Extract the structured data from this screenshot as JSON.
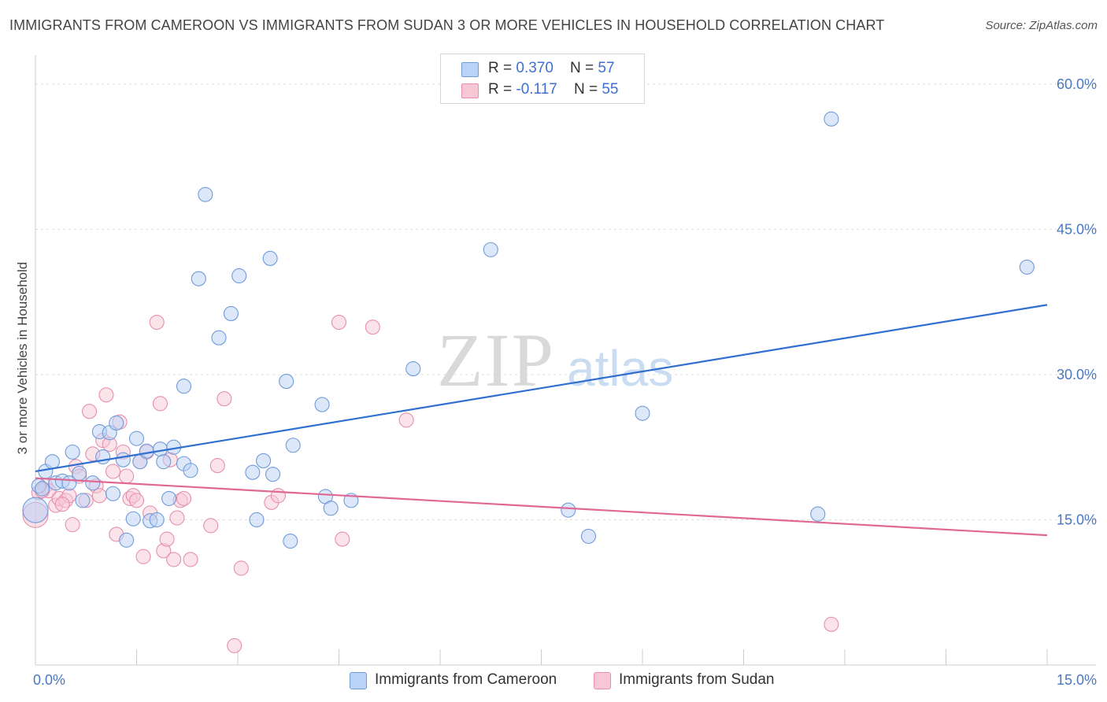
{
  "title": "IMMIGRANTS FROM CAMEROON VS IMMIGRANTS FROM SUDAN 3 OR MORE VEHICLES IN HOUSEHOLD CORRELATION CHART",
  "source": "Source: ZipAtlas.com",
  "legend": {
    "rows": [
      {
        "r_label": "R = ",
        "r_value": "0.370",
        "n_label": "N = ",
        "n_value": "57"
      },
      {
        "r_label": "R = ",
        "r_value": "-0.117",
        "n_label": "N = ",
        "n_value": "55"
      }
    ]
  },
  "colors": {
    "cameroon_fill": "#b9d2f5",
    "cameroon_stroke": "#6f9bd9",
    "cameroon_line": "#2f6fd0",
    "sudan_fill": "#f8c7d6",
    "sudan_stroke": "#e68fae",
    "sudan_line": "#e06994",
    "tick_label": "#4a78c0"
  },
  "chart_data": {
    "type": "scatter",
    "title": "IMMIGRANTS FROM CAMEROON VS IMMIGRANTS FROM SUDAN 3 OR MORE VEHICLES IN HOUSEHOLD CORRELATION CHART",
    "xlabel": "",
    "ylabel": "3 or more Vehicles in Household",
    "xlim": [
      0,
      15
    ],
    "ylim": [
      0,
      63
    ],
    "x_tick_labels": [
      "0.0%",
      "15.0%"
    ],
    "y_ticks": [
      15,
      30,
      45,
      60
    ],
    "y_tick_labels": [
      "15.0%",
      "30.0%",
      "45.0%",
      "60.0%"
    ],
    "grid": true,
    "legend_placement": "top-center",
    "series": [
      {
        "name": "Immigrants from Cameroon",
        "trend": {
          "x": [
            0,
            15
          ],
          "y": [
            20.0,
            37.2
          ]
        },
        "points": [
          {
            "x": 0.0,
            "y": 16.0
          },
          {
            "x": 0.05,
            "y": 18.5
          },
          {
            "x": 0.15,
            "y": 20.0
          },
          {
            "x": 0.25,
            "y": 21.0
          },
          {
            "x": 0.3,
            "y": 18.8
          },
          {
            "x": 0.4,
            "y": 19.0
          },
          {
            "x": 0.5,
            "y": 18.8
          },
          {
            "x": 0.55,
            "y": 22.0
          },
          {
            "x": 0.65,
            "y": 19.8
          },
          {
            "x": 0.7,
            "y": 17.0
          },
          {
            "x": 0.85,
            "y": 18.8
          },
          {
            "x": 0.95,
            "y": 24.1
          },
          {
            "x": 1.0,
            "y": 21.5
          },
          {
            "x": 1.1,
            "y": 24.0
          },
          {
            "x": 1.15,
            "y": 17.7
          },
          {
            "x": 1.2,
            "y": 25.0
          },
          {
            "x": 1.3,
            "y": 21.2
          },
          {
            "x": 1.35,
            "y": 12.9
          },
          {
            "x": 1.45,
            "y": 15.1
          },
          {
            "x": 1.5,
            "y": 23.4
          },
          {
            "x": 1.55,
            "y": 21.0
          },
          {
            "x": 1.65,
            "y": 22.1
          },
          {
            "x": 1.7,
            "y": 14.9
          },
          {
            "x": 1.8,
            "y": 15.0
          },
          {
            "x": 1.85,
            "y": 22.3
          },
          {
            "x": 1.9,
            "y": 21.0
          },
          {
            "x": 1.98,
            "y": 17.2
          },
          {
            "x": 2.05,
            "y": 22.5
          },
          {
            "x": 2.2,
            "y": 20.8
          },
          {
            "x": 2.2,
            "y": 28.8
          },
          {
            "x": 2.3,
            "y": 20.1
          },
          {
            "x": 2.42,
            "y": 39.9
          },
          {
            "x": 2.52,
            "y": 48.6
          },
          {
            "x": 2.72,
            "y": 33.8
          },
          {
            "x": 2.9,
            "y": 36.3
          },
          {
            "x": 3.02,
            "y": 40.2
          },
          {
            "x": 3.22,
            "y": 19.9
          },
          {
            "x": 3.28,
            "y": 15.0
          },
          {
            "x": 3.38,
            "y": 21.1
          },
          {
            "x": 3.48,
            "y": 42.0
          },
          {
            "x": 3.52,
            "y": 19.7
          },
          {
            "x": 3.72,
            "y": 29.3
          },
          {
            "x": 3.78,
            "y": 12.8
          },
          {
            "x": 3.82,
            "y": 22.7
          },
          {
            "x": 4.25,
            "y": 26.9
          },
          {
            "x": 4.3,
            "y": 17.4
          },
          {
            "x": 4.38,
            "y": 16.2
          },
          {
            "x": 4.68,
            "y": 17.0
          },
          {
            "x": 5.6,
            "y": 30.6
          },
          {
            "x": 6.75,
            "y": 42.9
          },
          {
            "x": 7.9,
            "y": 16.0
          },
          {
            "x": 8.2,
            "y": 13.3
          },
          {
            "x": 9.0,
            "y": 26.0
          },
          {
            "x": 11.6,
            "y": 15.6
          },
          {
            "x": 11.8,
            "y": 56.4
          },
          {
            "x": 14.7,
            "y": 41.1
          },
          {
            "x": 0.1,
            "y": 18.2
          }
        ]
      },
      {
        "name": "Immigrants from Sudan",
        "trend": {
          "x": [
            0,
            15
          ],
          "y": [
            19.3,
            13.4
          ]
        },
        "points": [
          {
            "x": 0.0,
            "y": 15.5
          },
          {
            "x": 0.05,
            "y": 17.8
          },
          {
            "x": 0.15,
            "y": 18.5
          },
          {
            "x": 0.2,
            "y": 18.0
          },
          {
            "x": 0.3,
            "y": 16.5
          },
          {
            "x": 0.35,
            "y": 17.2
          },
          {
            "x": 0.45,
            "y": 17.0
          },
          {
            "x": 0.5,
            "y": 17.5
          },
          {
            "x": 0.55,
            "y": 14.5
          },
          {
            "x": 0.6,
            "y": 20.5
          },
          {
            "x": 0.65,
            "y": 19.5
          },
          {
            "x": 0.75,
            "y": 17.0
          },
          {
            "x": 0.8,
            "y": 26.2
          },
          {
            "x": 0.85,
            "y": 21.8
          },
          {
            "x": 0.9,
            "y": 18.5
          },
          {
            "x": 0.95,
            "y": 17.5
          },
          {
            "x": 1.0,
            "y": 23.2
          },
          {
            "x": 1.05,
            "y": 27.9
          },
          {
            "x": 1.1,
            "y": 22.8
          },
          {
            "x": 1.15,
            "y": 20.0
          },
          {
            "x": 1.2,
            "y": 13.5
          },
          {
            "x": 1.25,
            "y": 25.1
          },
          {
            "x": 1.3,
            "y": 22.0
          },
          {
            "x": 1.35,
            "y": 19.5
          },
          {
            "x": 1.4,
            "y": 17.2
          },
          {
            "x": 1.45,
            "y": 17.5
          },
          {
            "x": 1.5,
            "y": 17.0
          },
          {
            "x": 1.55,
            "y": 21.0
          },
          {
            "x": 1.6,
            "y": 11.2
          },
          {
            "x": 1.65,
            "y": 22.0
          },
          {
            "x": 1.7,
            "y": 15.7
          },
          {
            "x": 1.8,
            "y": 35.4
          },
          {
            "x": 1.85,
            "y": 27.0
          },
          {
            "x": 1.9,
            "y": 11.8
          },
          {
            "x": 1.95,
            "y": 13.0
          },
          {
            "x": 2.0,
            "y": 21.2
          },
          {
            "x": 2.05,
            "y": 10.9
          },
          {
            "x": 2.1,
            "y": 15.2
          },
          {
            "x": 2.15,
            "y": 17.0
          },
          {
            "x": 2.2,
            "y": 17.2
          },
          {
            "x": 2.3,
            "y": 10.9
          },
          {
            "x": 2.6,
            "y": 14.4
          },
          {
            "x": 2.7,
            "y": 20.6
          },
          {
            "x": 2.8,
            "y": 27.5
          },
          {
            "x": 2.95,
            "y": 2.0
          },
          {
            "x": 3.05,
            "y": 10.0
          },
          {
            "x": 3.5,
            "y": 16.8
          },
          {
            "x": 3.6,
            "y": 17.5
          },
          {
            "x": 4.5,
            "y": 35.4
          },
          {
            "x": 4.55,
            "y": 13.0
          },
          {
            "x": 5.0,
            "y": 34.9
          },
          {
            "x": 5.5,
            "y": 25.3
          },
          {
            "x": 11.8,
            "y": 4.2
          },
          {
            "x": 0.1,
            "y": 18.0
          },
          {
            "x": 0.4,
            "y": 16.6
          }
        ]
      }
    ]
  },
  "bottom_legend": [
    {
      "label": "Immigrants from Cameroon"
    },
    {
      "label": "Immigrants from Sudan"
    }
  ],
  "watermark": {
    "zip": "ZIP",
    "atlas": "atlas"
  }
}
